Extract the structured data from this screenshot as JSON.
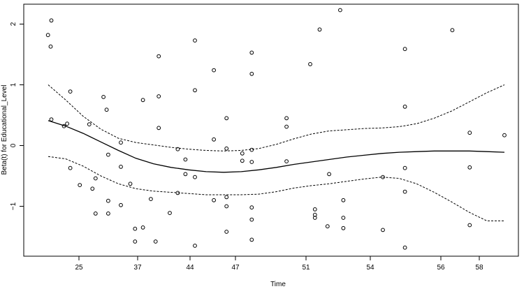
{
  "chart_data": {
    "type": "scatter",
    "xlabel": "Time",
    "ylabel": "Beta(t) for Educational_Level",
    "x_ticks": [
      {
        "value": 25,
        "label": "25"
      },
      {
        "value": 37,
        "label": "37"
      },
      {
        "value": 44,
        "label": "44"
      },
      {
        "value": 47,
        "label": "47"
      },
      {
        "value": 51,
        "label": "51"
      },
      {
        "value": 54,
        "label": "54"
      },
      {
        "value": 56,
        "label": "56"
      },
      {
        "value": 58,
        "label": "58"
      }
    ],
    "y_ticks": [
      {
        "value": -1,
        "label": "−1"
      },
      {
        "value": 0,
        "label": "0"
      },
      {
        "value": 1,
        "label": "1"
      },
      {
        "value": 2,
        "label": "2"
      }
    ],
    "grid": false,
    "points": [
      [
        21.99,
        1.82
      ],
      [
        22.18,
        2.06
      ],
      [
        22.14,
        1.63
      ],
      [
        22.18,
        0.43
      ],
      [
        22.9,
        0.32
      ],
      [
        23.08,
        0.36
      ],
      [
        23.26,
        0.89
      ],
      [
        23.26,
        -0.37
      ],
      [
        23.8,
        -0.65
      ],
      [
        24.34,
        0.35
      ],
      [
        24.52,
        -0.71
      ],
      [
        24.7,
        -0.54
      ],
      [
        24.7,
        -1.12
      ],
      [
        25.15,
        0.8
      ],
      [
        25.33,
        0.59
      ],
      [
        25.42,
        -0.15
      ],
      [
        25.42,
        -0.91
      ],
      [
        25.42,
        -1.12
      ],
      [
        26.14,
        0.05
      ],
      [
        26.14,
        -0.35
      ],
      [
        26.14,
        -0.98
      ],
      [
        26.68,
        -0.63
      ],
      [
        26.95,
        -1.37
      ],
      [
        26.95,
        -1.58
      ],
      [
        27.4,
        0.75
      ],
      [
        27.4,
        -1.35
      ],
      [
        27.85,
        -0.88
      ],
      [
        28.12,
        -1.58
      ],
      [
        28.3,
        0.81
      ],
      [
        28.3,
        0.29
      ],
      [
        28.3,
        1.47
      ],
      [
        28.93,
        -1.11
      ],
      [
        29.38,
        -0.06
      ],
      [
        29.38,
        -0.78
      ],
      [
        29.82,
        -0.23
      ],
      [
        29.82,
        -0.47
      ],
      [
        30.36,
        1.73
      ],
      [
        30.36,
        0.91
      ],
      [
        30.36,
        -0.52
      ],
      [
        30.36,
        -1.65
      ],
      [
        31.44,
        1.24
      ],
      [
        31.44,
        0.1
      ],
      [
        31.44,
        -0.9
      ],
      [
        32.16,
        0.45
      ],
      [
        32.16,
        -0.05
      ],
      [
        32.16,
        -0.85
      ],
      [
        32.16,
        -1.0
      ],
      [
        32.16,
        -1.42
      ],
      [
        33.06,
        -0.13
      ],
      [
        33.06,
        -0.25
      ],
      [
        33.6,
        1.53
      ],
      [
        33.6,
        1.18
      ],
      [
        33.6,
        -0.07
      ],
      [
        33.6,
        -0.27
      ],
      [
        33.6,
        -1.02
      ],
      [
        33.6,
        -1.22
      ],
      [
        33.6,
        -1.55
      ],
      [
        35.58,
        0.45
      ],
      [
        35.58,
        0.31
      ],
      [
        35.58,
        -0.26
      ],
      [
        36.93,
        1.34
      ],
      [
        37.2,
        -1.05
      ],
      [
        37.2,
        -1.14
      ],
      [
        37.2,
        -1.19
      ],
      [
        37.47,
        1.91
      ],
      [
        37.92,
        -1.33
      ],
      [
        38.01,
        -0.47
      ],
      [
        38.64,
        2.23
      ],
      [
        38.82,
        -0.9
      ],
      [
        38.82,
        -1.19
      ],
      [
        38.82,
        -1.36
      ],
      [
        41.07,
        -0.52
      ],
      [
        41.07,
        -1.39
      ],
      [
        42.33,
        1.59
      ],
      [
        42.33,
        0.64
      ],
      [
        42.33,
        -0.37
      ],
      [
        42.33,
        -0.76
      ],
      [
        42.33,
        -1.68
      ],
      [
        45.03,
        1.9
      ],
      [
        46.02,
        0.21
      ],
      [
        46.02,
        -0.36
      ],
      [
        46.02,
        -1.31
      ],
      [
        48.0,
        0.17
      ]
    ],
    "fit": [
      [
        22.0,
        0.41
      ],
      [
        23.0,
        0.32
      ],
      [
        24.0,
        0.2
      ],
      [
        25.0,
        0.06
      ],
      [
        26.0,
        -0.08
      ],
      [
        27.0,
        -0.21
      ],
      [
        28.0,
        -0.3
      ],
      [
        29.0,
        -0.36
      ],
      [
        30.0,
        -0.4
      ],
      [
        31.0,
        -0.43
      ],
      [
        32.0,
        -0.44
      ],
      [
        33.0,
        -0.43
      ],
      [
        34.0,
        -0.4
      ],
      [
        35.0,
        -0.36
      ],
      [
        36.0,
        -0.31
      ],
      [
        37.0,
        -0.27
      ],
      [
        38.0,
        -0.23
      ],
      [
        39.0,
        -0.19
      ],
      [
        40.0,
        -0.16
      ],
      [
        41.0,
        -0.13
      ],
      [
        42.0,
        -0.11
      ],
      [
        43.0,
        -0.1
      ],
      [
        44.0,
        -0.09
      ],
      [
        45.0,
        -0.09
      ],
      [
        46.0,
        -0.09
      ],
      [
        47.0,
        -0.1
      ],
      [
        48.0,
        -0.11
      ]
    ],
    "upper_band": [
      [
        22.0,
        1.0
      ],
      [
        23.0,
        0.75
      ],
      [
        24.0,
        0.48
      ],
      [
        25.0,
        0.27
      ],
      [
        26.0,
        0.12
      ],
      [
        27.0,
        0.05
      ],
      [
        28.0,
        0.01
      ],
      [
        29.0,
        -0.03
      ],
      [
        30.0,
        -0.06
      ],
      [
        31.0,
        -0.08
      ],
      [
        32.0,
        -0.09
      ],
      [
        33.0,
        -0.08
      ],
      [
        34.0,
        -0.05
      ],
      [
        35.0,
        0.02
      ],
      [
        36.0,
        0.11
      ],
      [
        37.0,
        0.19
      ],
      [
        38.0,
        0.24
      ],
      [
        39.0,
        0.26
      ],
      [
        40.0,
        0.28
      ],
      [
        41.0,
        0.29
      ],
      [
        42.0,
        0.31
      ],
      [
        43.0,
        0.36
      ],
      [
        44.0,
        0.45
      ],
      [
        45.0,
        0.57
      ],
      [
        46.0,
        0.72
      ],
      [
        47.0,
        0.87
      ],
      [
        48.0,
        1.0
      ]
    ],
    "lower_band": [
      [
        22.0,
        -0.18
      ],
      [
        23.0,
        -0.22
      ],
      [
        24.0,
        -0.34
      ],
      [
        25.0,
        -0.5
      ],
      [
        26.0,
        -0.63
      ],
      [
        27.0,
        -0.71
      ],
      [
        28.0,
        -0.75
      ],
      [
        29.0,
        -0.77
      ],
      [
        30.0,
        -0.79
      ],
      [
        31.0,
        -0.81
      ],
      [
        32.0,
        -0.81
      ],
      [
        33.0,
        -0.81
      ],
      [
        34.0,
        -0.8
      ],
      [
        35.0,
        -0.76
      ],
      [
        36.0,
        -0.7
      ],
      [
        37.0,
        -0.66
      ],
      [
        38.0,
        -0.63
      ],
      [
        39.0,
        -0.59
      ],
      [
        40.0,
        -0.55
      ],
      [
        41.0,
        -0.52
      ],
      [
        42.0,
        -0.54
      ],
      [
        43.0,
        -0.63
      ],
      [
        44.0,
        -0.77
      ],
      [
        45.0,
        -0.93
      ],
      [
        46.0,
        -1.1
      ],
      [
        47.0,
        -1.24
      ],
      [
        48.0,
        -1.24
      ]
    ]
  }
}
